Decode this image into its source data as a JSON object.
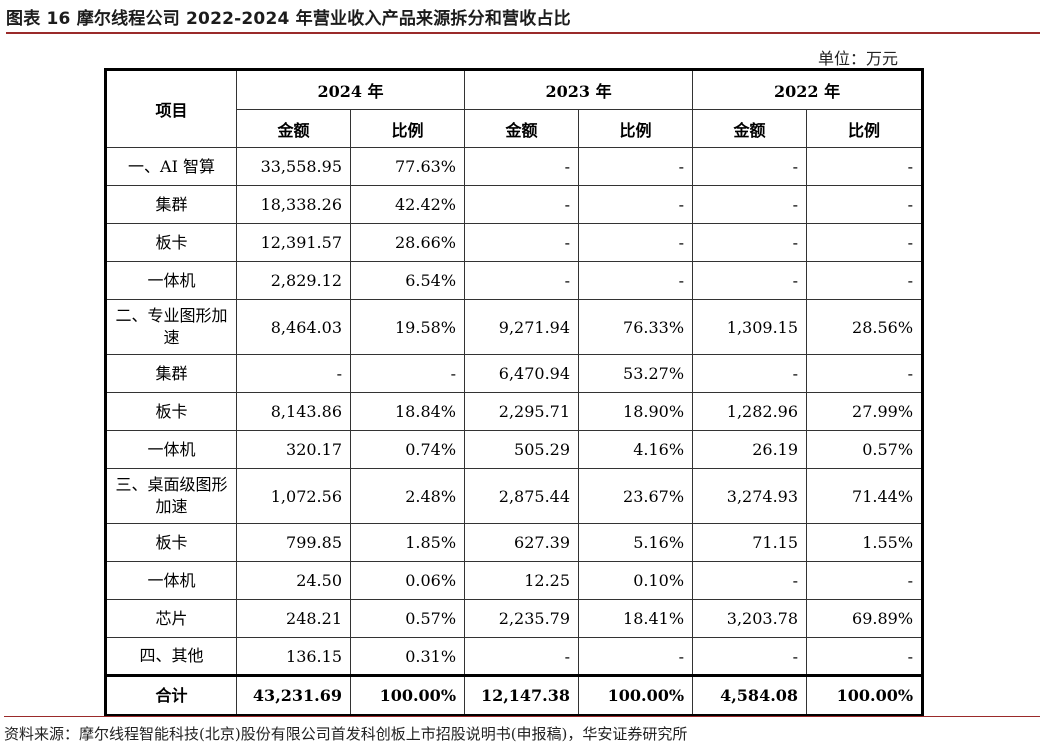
{
  "title": "图表 16 摩尔线程公司 2022-2024 年营业收入产品来源拆分和营收占比",
  "unit": "单位：万元",
  "table": {
    "item_header": "项目",
    "years": [
      "2024 年",
      "2023 年",
      "2022 年"
    ],
    "sub_headers": [
      "金额",
      "比例",
      "金额",
      "比例",
      "金额",
      "比例"
    ],
    "rows": [
      {
        "item": "一、AI 智算",
        "cells": [
          "33,558.95",
          "77.63%",
          "-",
          "-",
          "-",
          "-"
        ]
      },
      {
        "item": "集群",
        "cells": [
          "18,338.26",
          "42.42%",
          "-",
          "-",
          "-",
          "-"
        ]
      },
      {
        "item": "板卡",
        "cells": [
          "12,391.57",
          "28.66%",
          "-",
          "-",
          "-",
          "-"
        ]
      },
      {
        "item": "一体机",
        "cells": [
          "2,829.12",
          "6.54%",
          "-",
          "-",
          "-",
          "-"
        ]
      },
      {
        "item": "二、专业图形加速",
        "cells": [
          "8,464.03",
          "19.58%",
          "9,271.94",
          "76.33%",
          "1,309.15",
          "28.56%"
        ]
      },
      {
        "item": "集群",
        "cells": [
          "-",
          "-",
          "6,470.94",
          "53.27%",
          "-",
          "-"
        ]
      },
      {
        "item": "板卡",
        "cells": [
          "8,143.86",
          "18.84%",
          "2,295.71",
          "18.90%",
          "1,282.96",
          "27.99%"
        ]
      },
      {
        "item": "一体机",
        "cells": [
          "320.17",
          "0.74%",
          "505.29",
          "4.16%",
          "26.19",
          "0.57%"
        ]
      },
      {
        "item": "三、桌面级图形加速",
        "cells": [
          "1,072.56",
          "2.48%",
          "2,875.44",
          "23.67%",
          "3,274.93",
          "71.44%"
        ]
      },
      {
        "item": "板卡",
        "cells": [
          "799.85",
          "1.85%",
          "627.39",
          "5.16%",
          "71.15",
          "1.55%"
        ]
      },
      {
        "item": "一体机",
        "cells": [
          "24.50",
          "0.06%",
          "12.25",
          "0.10%",
          "-",
          "-"
        ]
      },
      {
        "item": "芯片",
        "cells": [
          "248.21",
          "0.57%",
          "2,235.79",
          "18.41%",
          "3,203.78",
          "69.89%"
        ]
      },
      {
        "item": "四、其他",
        "cells": [
          "136.15",
          "0.31%",
          "-",
          "-",
          "-",
          "-"
        ]
      }
    ],
    "total": {
      "item": "合计",
      "cells": [
        "43,231.69",
        "100.00%",
        "12,147.38",
        "100.00%",
        "4,584.08",
        "100.00%"
      ]
    }
  },
  "source": "资料来源：摩尔线程智能科技(北京)股份有限公司首发科创板上市招股说明书(申报稿)，华安证券研究所"
}
